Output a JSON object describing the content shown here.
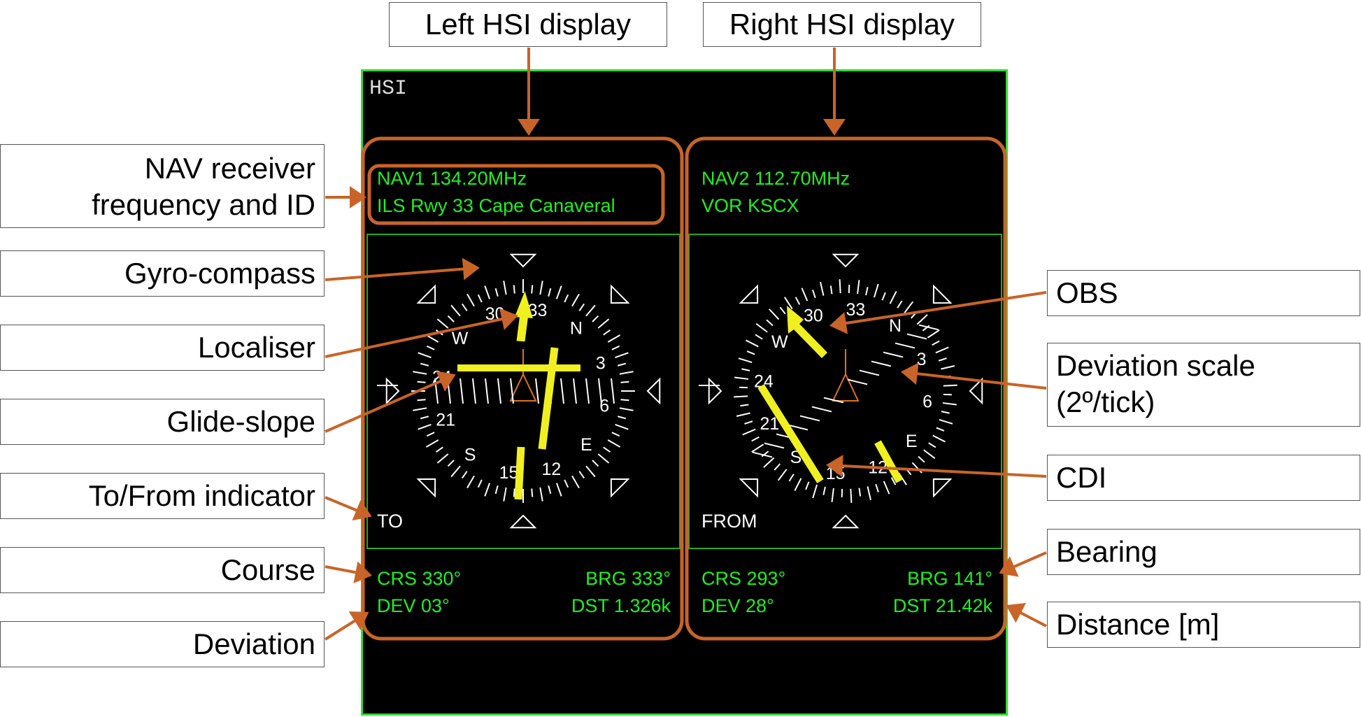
{
  "header_labels": {
    "left": "Left HSI display",
    "right": "Right HSI display"
  },
  "left_labels": {
    "nav_receiver_line1": "NAV receiver",
    "nav_receiver_line2": "frequency and ID",
    "gyro_compass": "Gyro-compass",
    "localiser": "Localiser",
    "glide_slope": "Glide-slope",
    "to_from_indicator": "To/From indicator",
    "course": "Course",
    "deviation": "Deviation"
  },
  "right_labels": {
    "obs": "OBS",
    "deviation_scale_line1": "Deviation scale",
    "deviation_scale_line2": "(2º/tick)",
    "cdi": "CDI",
    "bearing": "Bearing",
    "distance": "Distance [m]"
  },
  "mfd": {
    "title": "HSI",
    "left_hsi": {
      "nav_frequency": "NAV1 134.20MHz",
      "nav_id": "ILS Rwy 33 Cape Canaveral",
      "to_from": "TO",
      "course": "CRS 330°",
      "bearing": "BRG 333°",
      "deviation": "DEV 03°",
      "distance": "DST 1.326k",
      "compass_labels": [
        "33",
        "N",
        "3",
        "6",
        "E",
        "12",
        "15",
        "S",
        "21",
        "24",
        "W",
        "30"
      ],
      "compass_labels_rotation_deg": 10
    },
    "right_hsi": {
      "nav_frequency": "NAV2 112.70MHz",
      "nav_id": "VOR KSCX",
      "to_from": "FROM",
      "course": "CRS 293°",
      "bearing": "BRG 141°",
      "deviation": "DEV 28°",
      "distance": "DST 21.42k",
      "compass_labels": [
        "33",
        "N",
        "3",
        "6",
        "E",
        "12",
        "15",
        "S",
        "21",
        "24",
        "W",
        "30"
      ],
      "compass_labels_rotation_deg": 7
    }
  },
  "colors": {
    "annotation": "#c86428",
    "screen_border": "#33dd33",
    "mfd_text": "#22ee22",
    "needle": "#f0f020",
    "aircraft_symbol": "#e07020",
    "compass": "#ffffff"
  }
}
